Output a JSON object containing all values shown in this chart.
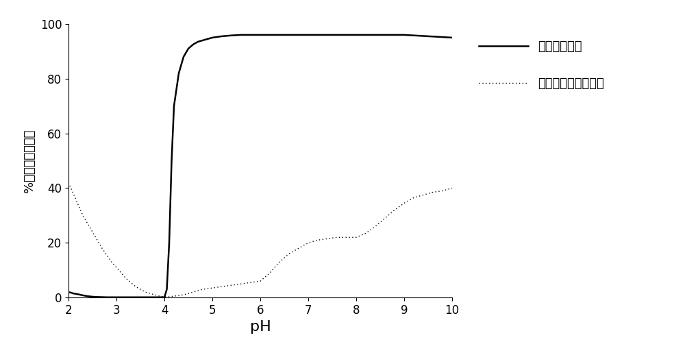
{
  "modified_protein_x": [
    2.0,
    2.05,
    2.1,
    2.2,
    2.3,
    2.4,
    2.5,
    2.6,
    2.7,
    2.8,
    2.9,
    3.0,
    3.1,
    3.2,
    3.3,
    3.4,
    3.5,
    3.6,
    3.7,
    3.8,
    3.9,
    4.0,
    4.05,
    4.1,
    4.15,
    4.2,
    4.3,
    4.4,
    4.5,
    4.6,
    4.7,
    4.8,
    4.9,
    5.0,
    5.2,
    5.4,
    5.6,
    5.8,
    6.0,
    6.5,
    7.0,
    7.5,
    8.0,
    8.5,
    9.0,
    9.5,
    10.0
  ],
  "modified_protein_y": [
    2.0,
    1.8,
    1.5,
    1.2,
    0.8,
    0.5,
    0.3,
    0.2,
    0.15,
    0.1,
    0.1,
    0.1,
    0.1,
    0.1,
    0.1,
    0.1,
    0.1,
    0.1,
    0.1,
    0.1,
    0.1,
    0.1,
    3.0,
    20.0,
    50.0,
    70.0,
    82.0,
    88.0,
    91.0,
    92.5,
    93.5,
    94.0,
    94.5,
    95.0,
    95.5,
    95.8,
    96.0,
    96.0,
    96.0,
    96.0,
    96.0,
    96.0,
    96.0,
    96.0,
    96.0,
    95.5,
    95.0
  ],
  "control_protein_x": [
    2.0,
    2.1,
    2.2,
    2.3,
    2.4,
    2.5,
    2.6,
    2.7,
    2.8,
    2.9,
    3.0,
    3.1,
    3.2,
    3.3,
    3.4,
    3.5,
    3.6,
    3.7,
    3.8,
    3.9,
    4.0,
    4.1,
    4.2,
    4.4,
    4.6,
    4.8,
    5.0,
    5.2,
    5.4,
    5.6,
    5.8,
    6.0,
    6.2,
    6.4,
    6.6,
    6.8,
    7.0,
    7.2,
    7.4,
    7.6,
    7.8,
    8.0,
    8.2,
    8.4,
    8.6,
    8.8,
    9.0,
    9.2,
    9.4,
    9.6,
    9.8,
    10.0
  ],
  "control_protein_y": [
    42.0,
    38.0,
    34.0,
    30.0,
    27.0,
    24.0,
    21.0,
    18.0,
    15.5,
    13.0,
    11.0,
    9.0,
    7.0,
    5.5,
    4.0,
    3.0,
    2.0,
    1.5,
    1.0,
    0.5,
    0.3,
    0.3,
    0.5,
    1.0,
    2.0,
    3.0,
    3.5,
    4.0,
    4.5,
    5.0,
    5.5,
    6.0,
    9.0,
    13.0,
    16.0,
    18.0,
    20.0,
    21.0,
    21.5,
    22.0,
    22.0,
    22.0,
    23.5,
    26.0,
    29.0,
    32.0,
    34.5,
    36.5,
    37.5,
    38.5,
    39.0,
    40.0
  ],
  "xlabel": "pH",
  "ylabel": "%可溶性的蛋白质",
  "xlim": [
    2,
    10
  ],
  "ylim": [
    0,
    100
  ],
  "xticks": [
    2,
    3,
    4,
    5,
    6,
    7,
    8,
    9,
    10
  ],
  "yticks": [
    0,
    20,
    40,
    60,
    80,
    100
  ],
  "legend_modified": "改性的蛋白质",
  "legend_control": "对照未改性的蛋白质",
  "line_color": "#000000",
  "bg_color": "#ffffff",
  "modified_linewidth": 1.8,
  "control_linewidth": 1.0,
  "xlabel_fontsize": 16,
  "ylabel_fontsize": 13,
  "tick_fontsize": 12,
  "legend_fontsize": 13
}
